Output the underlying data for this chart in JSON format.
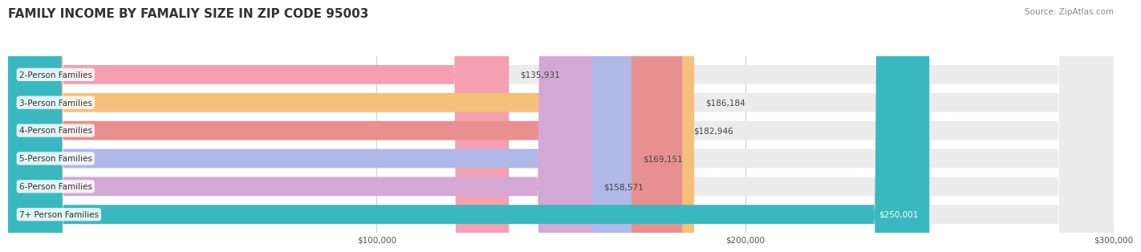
{
  "title": "FAMILY INCOME BY FAMALIY SIZE IN ZIP CODE 95003",
  "source": "Source: ZipAtlas.com",
  "categories": [
    "2-Person Families",
    "3-Person Families",
    "4-Person Families",
    "5-Person Families",
    "6-Person Families",
    "7+ Person Families"
  ],
  "values": [
    135931,
    186184,
    182946,
    169151,
    158571,
    250001
  ],
  "bar_colors": [
    "#f4a0b0",
    "#f5c07a",
    "#e89090",
    "#b0b8e8",
    "#d4a8d4",
    "#3ab8c0"
  ],
  "label_colors": [
    "#555555",
    "#555555",
    "#555555",
    "#555555",
    "#555555",
    "#ffffff"
  ],
  "bar_bg_color": "#ececec",
  "background_color": "#ffffff",
  "xmin": 0,
  "xmax": 300000,
  "xticks": [
    100000,
    200000,
    300000
  ],
  "xtick_labels": [
    "$100,000",
    "$200,000",
    "$300,000"
  ],
  "title_fontsize": 11,
  "label_fontsize": 7.5,
  "value_fontsize": 7.5,
  "tick_fontsize": 7.5
}
